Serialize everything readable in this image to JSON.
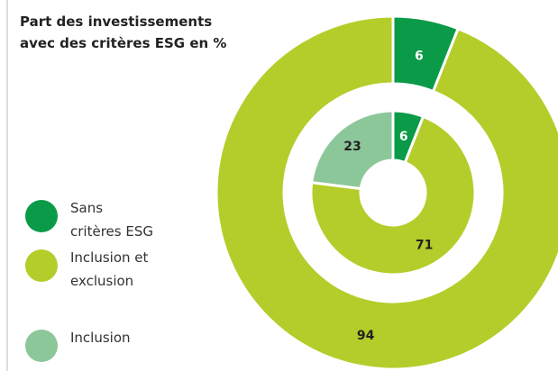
{
  "chart_data": {
    "type": "donut",
    "title": "Part des investissements avec des critères ESG en %",
    "categories": [
      "Sans critères ESG",
      "Inclusion et exclusion",
      "Inclusion"
    ],
    "colors": [
      "#0a9a48",
      "#b5cd2a",
      "#8cc79a"
    ],
    "rings": [
      {
        "values": [
          6,
          94,
          null
        ]
      },
      {
        "values": [
          6,
          71,
          23
        ]
      }
    ]
  }
}
